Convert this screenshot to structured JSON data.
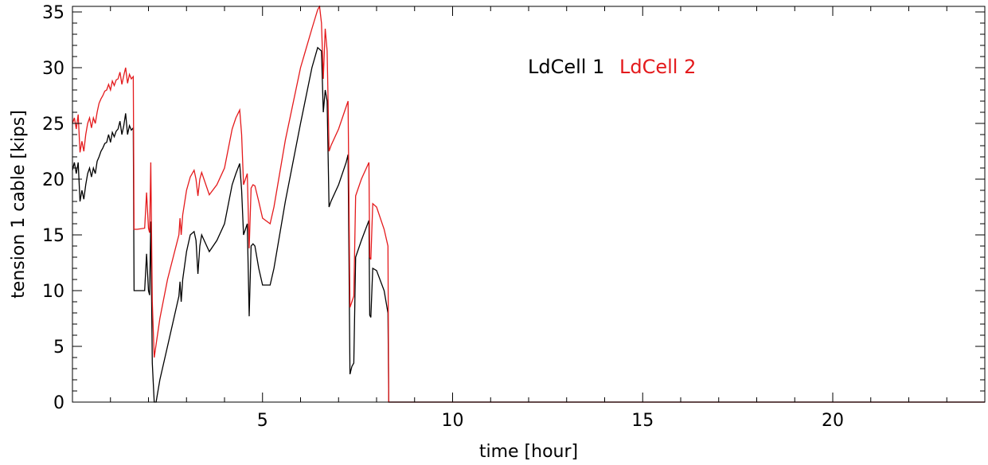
{
  "chart_data": {
    "type": "line",
    "title": "",
    "xlabel": "time [hour]",
    "ylabel": "tension 1 cable [kips]",
    "xlim": [
      0,
      24
    ],
    "ylim": [
      0,
      35.5
    ],
    "xticks": [
      5,
      10,
      15,
      20
    ],
    "yticks": [
      0,
      5,
      10,
      15,
      20,
      25,
      30,
      35
    ],
    "grid": false,
    "legend_position": "top-center",
    "series": [
      {
        "name": "LdCell 1",
        "color": "#000000",
        "x": [
          0.0,
          0.05,
          0.1,
          0.15,
          0.2,
          0.25,
          0.3,
          0.35,
          0.4,
          0.45,
          0.5,
          0.55,
          0.6,
          0.65,
          0.7,
          0.75,
          0.8,
          0.85,
          0.9,
          0.95,
          1.0,
          1.05,
          1.1,
          1.15,
          1.2,
          1.25,
          1.3,
          1.35,
          1.4,
          1.45,
          1.5,
          1.55,
          1.6,
          1.62,
          1.65,
          1.7,
          1.9,
          1.95,
          2.0,
          2.03,
          2.06,
          2.1,
          2.15,
          2.2,
          2.22,
          2.3,
          2.5,
          2.8,
          2.83,
          2.86,
          2.9,
          3.0,
          3.1,
          3.2,
          3.25,
          3.3,
          3.35,
          3.4,
          3.6,
          3.8,
          4.0,
          4.2,
          4.3,
          4.4,
          4.45,
          4.5,
          4.6,
          4.65,
          4.7,
          4.75,
          4.8,
          4.9,
          5.0,
          5.2,
          5.3,
          5.6,
          6.0,
          6.3,
          6.45,
          6.55,
          6.6,
          6.65,
          6.7,
          6.75,
          6.8,
          7.0,
          7.2,
          7.25,
          7.3,
          7.35,
          7.4,
          7.45,
          7.5,
          7.6,
          7.8,
          7.82,
          7.85,
          7.9,
          8.0,
          8.2,
          8.3,
          8.32,
          8.35,
          24.0
        ],
        "y": [
          20.8,
          21.5,
          20.5,
          21.5,
          18.0,
          19.0,
          18.2,
          19.5,
          20.5,
          21.0,
          20.2,
          21.0,
          20.5,
          21.6,
          22.0,
          22.5,
          22.8,
          23.2,
          23.3,
          24.0,
          23.3,
          24.2,
          23.8,
          24.3,
          24.5,
          25.2,
          24.0,
          24.8,
          25.9,
          24.0,
          24.8,
          24.4,
          24.6,
          10.0,
          10.0,
          10.0,
          10.0,
          13.3,
          10.0,
          9.6,
          16.2,
          3.5,
          0.0,
          0.0,
          0.4,
          2.0,
          5.0,
          9.5,
          10.8,
          9.0,
          11.0,
          13.5,
          15.0,
          15.3,
          14.5,
          11.5,
          14.0,
          15.0,
          13.5,
          14.5,
          16.0,
          19.5,
          20.5,
          21.4,
          19.0,
          15.0,
          16.0,
          7.7,
          14.0,
          14.2,
          14.0,
          12.0,
          10.5,
          10.5,
          12.0,
          18.0,
          25.0,
          30.0,
          31.8,
          31.5,
          26.0,
          28.0,
          27.0,
          17.5,
          18.0,
          19.5,
          21.5,
          22.2,
          2.5,
          3.2,
          3.5,
          13.0,
          13.5,
          14.5,
          16.3,
          7.8,
          7.6,
          12.0,
          11.8,
          10.0,
          8.0,
          0.0,
          0.0,
          0.0
        ]
      },
      {
        "name": "LdCell 2",
        "color": "#e41a1c",
        "x": [
          0.0,
          0.05,
          0.1,
          0.15,
          0.2,
          0.25,
          0.3,
          0.35,
          0.4,
          0.45,
          0.5,
          0.55,
          0.6,
          0.65,
          0.7,
          0.75,
          0.8,
          0.85,
          0.9,
          0.95,
          1.0,
          1.05,
          1.1,
          1.15,
          1.2,
          1.25,
          1.3,
          1.35,
          1.4,
          1.45,
          1.5,
          1.55,
          1.6,
          1.62,
          1.65,
          1.7,
          1.9,
          1.95,
          2.0,
          2.03,
          2.06,
          2.1,
          2.15,
          2.3,
          2.5,
          2.8,
          2.83,
          2.86,
          2.9,
          3.0,
          3.1,
          3.2,
          3.25,
          3.3,
          3.35,
          3.4,
          3.6,
          3.8,
          4.0,
          4.2,
          4.3,
          4.4,
          4.45,
          4.5,
          4.6,
          4.65,
          4.7,
          4.75,
          4.8,
          4.9,
          5.0,
          5.2,
          5.3,
          5.6,
          6.0,
          6.3,
          6.45,
          6.5,
          6.55,
          6.6,
          6.65,
          6.7,
          6.75,
          6.8,
          7.0,
          7.2,
          7.25,
          7.3,
          7.35,
          7.4,
          7.45,
          7.5,
          7.6,
          7.8,
          7.82,
          7.85,
          7.9,
          8.0,
          8.2,
          8.3,
          8.32,
          8.35,
          24.0
        ],
        "y": [
          25.0,
          25.5,
          24.5,
          25.8,
          22.4,
          23.4,
          22.5,
          24.0,
          25.0,
          25.5,
          24.6,
          25.5,
          25.0,
          26.0,
          26.8,
          27.2,
          27.5,
          27.9,
          28.0,
          28.5,
          28.0,
          28.8,
          28.4,
          28.9,
          29.0,
          29.6,
          28.5,
          29.3,
          30.0,
          28.6,
          29.4,
          29.0,
          29.2,
          15.5,
          15.5,
          15.5,
          15.6,
          18.8,
          15.6,
          15.2,
          21.5,
          9.0,
          4.0,
          7.5,
          11.0,
          15.0,
          16.5,
          15.0,
          16.8,
          19.0,
          20.2,
          20.8,
          20.0,
          18.5,
          20.0,
          20.6,
          18.6,
          19.5,
          21.0,
          24.5,
          25.5,
          26.2,
          24.0,
          19.5,
          20.5,
          13.8,
          19.2,
          19.5,
          19.4,
          18.0,
          16.5,
          16.0,
          17.5,
          23.5,
          30.0,
          33.5,
          35.2,
          35.5,
          34.0,
          29.0,
          33.5,
          31.5,
          22.5,
          23.0,
          24.5,
          26.5,
          27.0,
          8.5,
          9.0,
          9.5,
          18.5,
          19.0,
          20.0,
          21.5,
          13.0,
          12.8,
          17.8,
          17.5,
          15.5,
          14.0,
          0.0,
          0.0,
          0.0
        ]
      }
    ]
  }
}
